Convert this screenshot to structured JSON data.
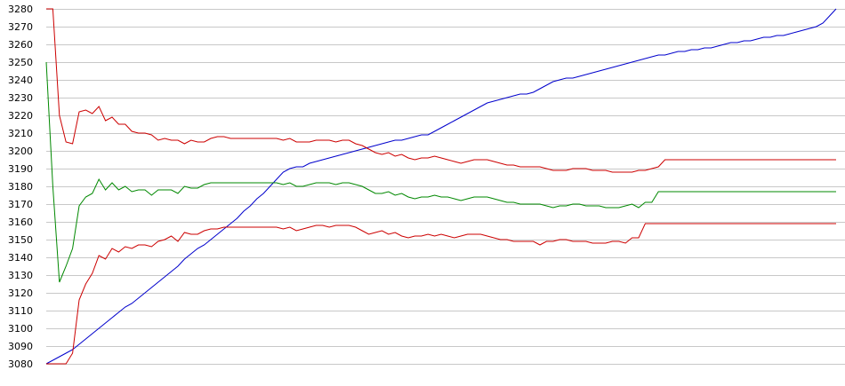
{
  "chart_data": {
    "type": "line",
    "title": "",
    "xlabel": "",
    "ylabel": "",
    "ylim": [
      3080,
      3280
    ],
    "yticks": [
      3080,
      3090,
      3100,
      3110,
      3120,
      3130,
      3140,
      3150,
      3160,
      3170,
      3180,
      3190,
      3200,
      3210,
      3220,
      3230,
      3240,
      3250,
      3260,
      3270,
      3280
    ],
    "grid": true,
    "legend": "none",
    "x": [
      1,
      2,
      3,
      4,
      5,
      6,
      7,
      8,
      9,
      10,
      11,
      12,
      13,
      14,
      15,
      16,
      17,
      18,
      19,
      20,
      21,
      22,
      23,
      24,
      25,
      26,
      27,
      28,
      29,
      30,
      31,
      32,
      33,
      34,
      35,
      36,
      37,
      38,
      39,
      40,
      41,
      42,
      43,
      44,
      45,
      46,
      47,
      48,
      49,
      50,
      51,
      52,
      53,
      54,
      55,
      56,
      57,
      58,
      59,
      60,
      61,
      62,
      63,
      64,
      65,
      66,
      67,
      68,
      69,
      70,
      71,
      72,
      73,
      74,
      75,
      76,
      77,
      78,
      79,
      80,
      81,
      82,
      83,
      84,
      85,
      86,
      87,
      88,
      89,
      90,
      91,
      92,
      93,
      94,
      95,
      96,
      97,
      98,
      99,
      100,
      101,
      102,
      103,
      104,
      105,
      106,
      107,
      108,
      109,
      110,
      111,
      112,
      113,
      114,
      115,
      116,
      117,
      118,
      119,
      120,
      121
    ],
    "series": [
      {
        "color": "#0000cc",
        "values": [
          3080,
          3082,
          3084,
          3086,
          3088,
          3091,
          3094,
          3097,
          3100,
          3103,
          3106,
          3109,
          3112,
          3114,
          3117,
          3120,
          3123,
          3126,
          3129,
          3132,
          3135,
          3139,
          3142,
          3145,
          3147,
          3150,
          3153,
          3156,
          3159,
          3162,
          3166,
          3169,
          3173,
          3176,
          3180,
          3184,
          3188,
          3190,
          3191,
          3191,
          3193,
          3194,
          3195,
          3196,
          3197,
          3198,
          3199,
          3200,
          3201,
          3202,
          3203,
          3204,
          3205,
          3206,
          3206,
          3207,
          3208,
          3209,
          3209,
          3211,
          3213,
          3215,
          3217,
          3219,
          3221,
          3223,
          3225,
          3227,
          3228,
          3229,
          3230,
          3231,
          3232,
          3232,
          3233,
          3235,
          3237,
          3239,
          3240,
          3241,
          3241,
          3242,
          3243,
          3244,
          3245,
          3246,
          3247,
          3248,
          3249,
          3250,
          3251,
          3252,
          3253,
          3254,
          3254,
          3255,
          3256,
          3256,
          3257,
          3257,
          3258,
          3258,
          3259,
          3260,
          3261,
          3261,
          3262,
          3262,
          3263,
          3264,
          3264,
          3265,
          3265,
          3266,
          3267,
          3268,
          3269,
          3270,
          3272,
          3276,
          3280
        ]
      },
      {
        "color": "#cc0000",
        "values": [
          3280,
          3280,
          3220,
          3205,
          3204,
          3222,
          3223,
          3221,
          3225,
          3217,
          3219,
          3215,
          3215,
          3211,
          3210,
          3210,
          3209,
          3206,
          3207,
          3206,
          3206,
          3204,
          3206,
          3205,
          3205,
          3207,
          3208,
          3208,
          3207,
          3207,
          3207,
          3207,
          3207,
          3207,
          3207,
          3207,
          3206,
          3207,
          3205,
          3205,
          3205,
          3206,
          3206,
          3206,
          3205,
          3206,
          3206,
          3204,
          3203,
          3201,
          3199,
          3198,
          3199,
          3197,
          3198,
          3196,
          3195,
          3196,
          3196,
          3197,
          3196,
          3195,
          3194,
          3193,
          3194,
          3195,
          3195,
          3195,
          3194,
          3193,
          3192,
          3192,
          3191,
          3191,
          3191,
          3191,
          3190,
          3189,
          3189,
          3189,
          3190,
          3190,
          3190,
          3189,
          3189,
          3189,
          3188,
          3188,
          3188,
          3188,
          3189,
          3189,
          3190,
          3191,
          3195,
          3195,
          3195,
          3195,
          3195,
          3195,
          3195,
          3195,
          3195,
          3195,
          3195,
          3195,
          3195,
          3195,
          3195,
          3195,
          3195,
          3195,
          3195,
          3195,
          3195,
          3195,
          3195,
          3195,
          3195,
          3195,
          3195
        ]
      },
      {
        "color": "#008800",
        "values": [
          3250,
          3180,
          3126,
          3135,
          3145,
          3169,
          3174,
          3176,
          3184,
          3178,
          3182,
          3178,
          3180,
          3177,
          3178,
          3178,
          3175,
          3178,
          3178,
          3178,
          3176,
          3180,
          3179,
          3179,
          3181,
          3182,
          3182,
          3182,
          3182,
          3182,
          3182,
          3182,
          3182,
          3182,
          3182,
          3182,
          3181,
          3182,
          3180,
          3180,
          3181,
          3182,
          3182,
          3182,
          3181,
          3182,
          3182,
          3181,
          3180,
          3178,
          3176,
          3176,
          3177,
          3175,
          3176,
          3174,
          3173,
          3174,
          3174,
          3175,
          3174,
          3174,
          3173,
          3172,
          3173,
          3174,
          3174,
          3174,
          3173,
          3172,
          3171,
          3171,
          3170,
          3170,
          3170,
          3170,
          3169,
          3168,
          3169,
          3169,
          3170,
          3170,
          3169,
          3169,
          3169,
          3168,
          3168,
          3168,
          3169,
          3170,
          3168,
          3171,
          3171,
          3177,
          3177,
          3177,
          3177,
          3177,
          3177,
          3177,
          3177,
          3177,
          3177,
          3177,
          3177,
          3177,
          3177,
          3177,
          3177,
          3177,
          3177,
          3177,
          3177,
          3177,
          3177,
          3177,
          3177,
          3177,
          3177,
          3177,
          3177
        ]
      },
      {
        "color": "#cc0000",
        "values": [
          3080,
          3080,
          3080,
          3080,
          3086,
          3116,
          3125,
          3131,
          3141,
          3139,
          3145,
          3143,
          3146,
          3145,
          3147,
          3147,
          3146,
          3149,
          3150,
          3152,
          3149,
          3154,
          3153,
          3153,
          3155,
          3156,
          3156,
          3157,
          3157,
          3157,
          3157,
          3157,
          3157,
          3157,
          3157,
          3157,
          3156,
          3157,
          3155,
          3156,
          3157,
          3158,
          3158,
          3157,
          3158,
          3158,
          3158,
          3157,
          3155,
          3153,
          3154,
          3155,
          3153,
          3154,
          3152,
          3151,
          3152,
          3152,
          3153,
          3152,
          3153,
          3152,
          3151,
          3152,
          3153,
          3153,
          3153,
          3152,
          3151,
          3150,
          3150,
          3149,
          3149,
          3149,
          3149,
          3147,
          3149,
          3149,
          3150,
          3150,
          3149,
          3149,
          3149,
          3148,
          3148,
          3148,
          3149,
          3149,
          3148,
          3151,
          3151,
          3159,
          3159,
          3159,
          3159,
          3159,
          3159,
          3159,
          3159,
          3159,
          3159,
          3159,
          3159,
          3159,
          3159,
          3159,
          3159,
          3159,
          3159,
          3159,
          3159,
          3159,
          3159,
          3159,
          3159,
          3159,
          3159,
          3159,
          3159,
          3159,
          3159
        ]
      }
    ]
  }
}
